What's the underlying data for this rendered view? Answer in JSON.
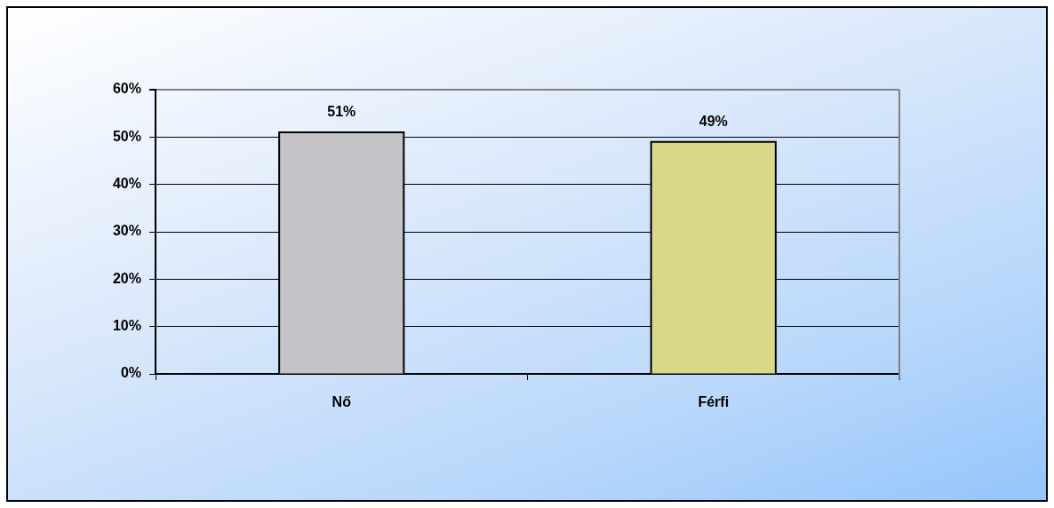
{
  "chart_data": {
    "type": "bar",
    "categories": [
      "Nő",
      "Férfi"
    ],
    "values": [
      51,
      49
    ],
    "colors": [
      "#c4c4c8",
      "#d8d888"
    ],
    "value_labels": [
      "51%",
      "49%"
    ],
    "ylim": [
      0,
      60
    ],
    "yticks": [
      {
        "value": 0,
        "label": "0%"
      },
      {
        "value": 10,
        "label": "10%"
      },
      {
        "value": 20,
        "label": "20%"
      },
      {
        "value": 30,
        "label": "30%"
      },
      {
        "value": 40,
        "label": "40%"
      },
      {
        "value": 50,
        "label": "50%"
      },
      {
        "value": 60,
        "label": "60%"
      }
    ],
    "grid": "y"
  }
}
